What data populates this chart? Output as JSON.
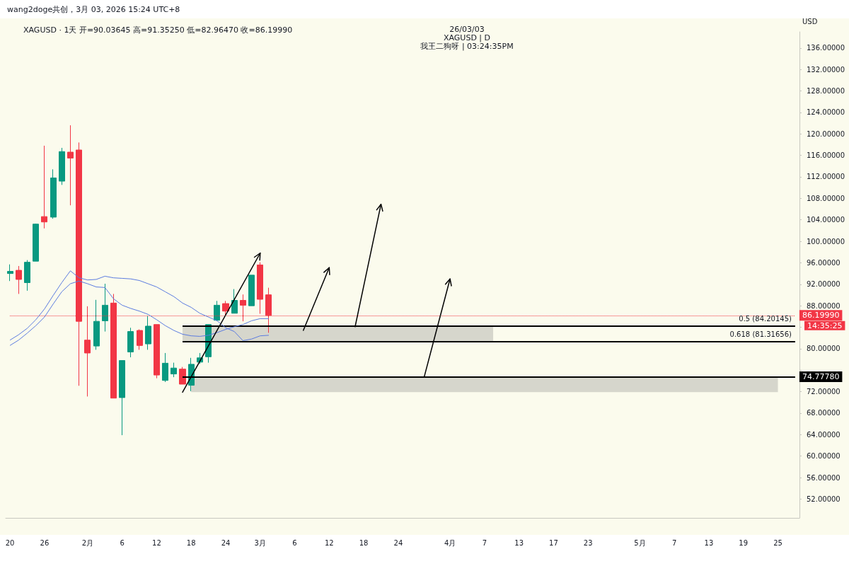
{
  "chart_data": {
    "type": "candlestick",
    "title": "XAGUSD · 1天 开=90.03645 高=91.35250 低=82.96470 收=86.19990",
    "ylabel": "USD",
    "annotations": [
      "wang2doge共创，3月 03, 2026 15:24 UTC+8",
      "26/03/03",
      "XAGUSD | D",
      "我王二狗呀 | 03:24:35PM",
      "14:35:25"
    ],
    "categories": [
      "20",
      null,
      null,
      null,
      "26",
      null,
      null,
      null,
      null,
      "2月",
      null,
      null,
      null,
      "6",
      null,
      null,
      null,
      "12",
      null,
      null,
      null,
      "18",
      null,
      null,
      null,
      "24",
      null,
      null,
      null,
      "3月",
      null,
      null,
      null,
      "6",
      null,
      null,
      null,
      "12",
      null,
      null,
      null,
      "18",
      null,
      null,
      null,
      "24",
      null,
      null,
      null,
      null,
      null,
      "4月",
      null,
      null,
      null,
      "7",
      null,
      null,
      null,
      "13",
      null,
      null,
      null,
      "17",
      null,
      null,
      null,
      "23",
      null,
      null,
      null,
      null,
      null,
      "5月",
      null,
      null,
      null,
      "7",
      null,
      null,
      null,
      "13",
      null,
      null,
      null,
      "19",
      null,
      null,
      null,
      "25",
      null,
      null
    ],
    "ohlc": [
      [
        94.0,
        95.7,
        92.6,
        94.4
      ],
      [
        94.6,
        95.4,
        90.2,
        92.9
      ],
      [
        92.3,
        96.5,
        90.8,
        96.1
      ],
      [
        96.3,
        103.3,
        96.3,
        103.2
      ],
      [
        104.6,
        117.8,
        102.4,
        103.6
      ],
      [
        104.5,
        113.4,
        104.2,
        111.8
      ],
      [
        111.2,
        117.4,
        110.5,
        116.7
      ],
      [
        116.6,
        121.6,
        106.7,
        115.5
      ],
      [
        117.0,
        118.4,
        73.1,
        85.1
      ],
      [
        81.6,
        87.9,
        71.1,
        79.2
      ],
      [
        80.5,
        89.1,
        79.8,
        85.1
      ],
      [
        85.2,
        92.1,
        83.2,
        88.1
      ],
      [
        88.5,
        90.2,
        70.8,
        70.8
      ],
      [
        70.9,
        77.8,
        63.9,
        77.8
      ],
      [
        79.4,
        83.9,
        78.4,
        83.2
      ],
      [
        83.4,
        83.6,
        79.8,
        80.6
      ],
      [
        80.9,
        86.2,
        79.8,
        84.2
      ],
      [
        84.5,
        84.5,
        74.5,
        75.1
      ],
      [
        74.1,
        79.2,
        73.8,
        77.3
      ],
      [
        75.3,
        77.4,
        74.7,
        76.4
      ],
      [
        76.2,
        76.6,
        73.4,
        73.4
      ],
      [
        73.2,
        78.3,
        72.1,
        77.1
      ],
      [
        77.5,
        79.2,
        77.2,
        78.3
      ],
      [
        78.5,
        84.5,
        77.4,
        84.5
      ],
      [
        85.3,
        88.9,
        85.2,
        88.1
      ],
      [
        88.4,
        88.9,
        86.2,
        87.0
      ],
      [
        86.6,
        91.1,
        86.6,
        89.0
      ],
      [
        89.0,
        90.1,
        85.1,
        88.1
      ],
      [
        88.0,
        93.7,
        88.0,
        93.7
      ],
      [
        95.6,
        96.1,
        86.5,
        89.2
      ],
      [
        90.03645,
        91.3525,
        82.9647,
        86.1999
      ],
      null,
      null,
      null,
      null,
      null,
      null,
      null,
      null,
      null,
      null,
      null,
      null,
      null,
      null,
      null,
      null,
      null,
      null,
      null,
      null,
      null,
      null,
      null,
      null,
      null,
      null,
      null,
      null,
      null,
      null,
      null,
      null,
      null,
      null,
      null,
      null,
      null,
      null,
      null,
      null,
      null,
      null,
      null,
      null,
      null,
      null,
      null,
      null,
      null,
      null,
      null,
      null,
      null,
      null,
      null,
      null,
      null,
      null,
      null,
      null,
      null
    ],
    "series": [
      {
        "type": "line",
        "color": "#5b7be0",
        "values": [
          81.6,
          82.6,
          83.8,
          85.4,
          87.4,
          89.9,
          92.3,
          94.5,
          93.2,
          92.8,
          92.9,
          93.5,
          93.2,
          93.1,
          93.0,
          92.7,
          92.1,
          91.5,
          90.6,
          89.7,
          88.5,
          87.7,
          86.6,
          85.9,
          85.2,
          83.9,
          83.2,
          81.5,
          81.8,
          82.4,
          82.5,
          null,
          null,
          null,
          null,
          null,
          null,
          null,
          null,
          null,
          null,
          null,
          null,
          null,
          null,
          null,
          null,
          null,
          null,
          null,
          null,
          null,
          null,
          null,
          null,
          null,
          null,
          null,
          null,
          null,
          null,
          null,
          null,
          null,
          null,
          null,
          null,
          null,
          null,
          null,
          null,
          null,
          null,
          null,
          null,
          null,
          null,
          null,
          null,
          null,
          null,
          null,
          null,
          null,
          null,
          null,
          null,
          null,
          null,
          null,
          null,
          null
        ]
      },
      {
        "type": "line",
        "color": "#5b7be0",
        "values": [
          80.6,
          81.6,
          82.9,
          84.3,
          85.9,
          88.3,
          90.6,
          92.1,
          92.6,
          92.1,
          91.5,
          91.4,
          89.3,
          88.1,
          87.5,
          87.0,
          86.4,
          85.4,
          84.3,
          83.4,
          82.7,
          82.4,
          82.3,
          82.5,
          83.0,
          83.6,
          84.1,
          84.5,
          85.2,
          85.6,
          85.6,
          null,
          null,
          null,
          null,
          null,
          null,
          null,
          null,
          null,
          null,
          null,
          null,
          null,
          null,
          null,
          null,
          null,
          null,
          null,
          null,
          null,
          null,
          null,
          null,
          null,
          null,
          null,
          null,
          null,
          null,
          null,
          null,
          null,
          null,
          null,
          null,
          null,
          null,
          null,
          null,
          null,
          null,
          null,
          null,
          null,
          null,
          null,
          null,
          null,
          null,
          null,
          null,
          null,
          null,
          null,
          null,
          null,
          null,
          null,
          null,
          null
        ]
      }
    ],
    "ref_lines": [
      {
        "axis": "y",
        "value": 86.1999,
        "label": "86.19990",
        "color": "#f23645",
        "line_style": "dotted"
      },
      {
        "axis": "y",
        "value": 84.20145,
        "label": "0.5 (84.20145)"
      },
      {
        "axis": "y",
        "value": 81.31656,
        "label": "0.618 (81.31656)"
      },
      {
        "axis": "y",
        "value": 74.7778,
        "label": "74.77780",
        "color": "#000000",
        "line_style": "solid"
      }
    ],
    "bands": [
      {
        "axis": "y",
        "from": 81.31656,
        "to": 84.20145,
        "color": "#d6d6cc"
      },
      {
        "axis": "y",
        "from": 71.9,
        "to": 74.7778,
        "color": "#d6d6cc"
      }
    ],
    "ylim": [
      48.5,
      139
    ],
    "yticks": [
      {
        "value": 52,
        "label": "52.00000"
      },
      {
        "value": 56,
        "label": "56.00000"
      },
      {
        "value": 60,
        "label": "60.00000"
      },
      {
        "value": 64,
        "label": "64.00000"
      },
      {
        "value": 68,
        "label": "68.00000"
      },
      {
        "value": 72,
        "label": "72.00000"
      },
      {
        "value": 76,
        "label": null
      },
      {
        "value": 80,
        "label": "80.00000"
      },
      {
        "value": 84,
        "label": null
      },
      {
        "value": 88,
        "label": "88.00000"
      },
      {
        "value": 92,
        "label": "92.00000"
      },
      {
        "value": 96,
        "label": "96.00000"
      },
      {
        "value": 100,
        "label": "100.00000"
      },
      {
        "value": 104,
        "label": "104.00000"
      },
      {
        "value": 108,
        "label": "108.00000"
      },
      {
        "value": 112,
        "label": "112.00000"
      },
      {
        "value": 116,
        "label": "116.00000"
      },
      {
        "value": 120,
        "label": "120.00000"
      },
      {
        "value": 124,
        "label": "124.00000"
      },
      {
        "value": 128,
        "label": "128.00000"
      },
      {
        "value": 132,
        "label": "132.00000"
      },
      {
        "value": 136,
        "label": "136.00000"
      }
    ],
    "grid": false
  }
}
